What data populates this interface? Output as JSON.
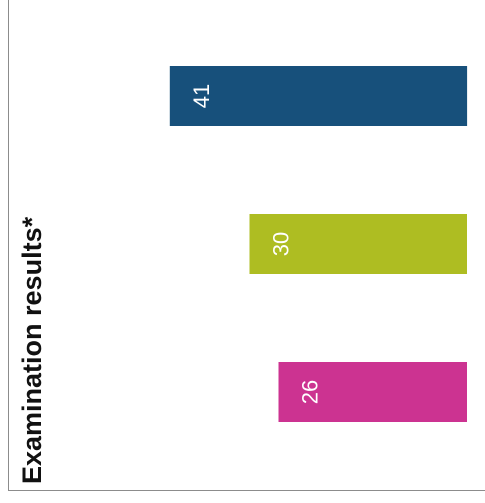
{
  "chart_data": {
    "type": "bar",
    "orientation": "horizontal",
    "ylabel": "Examination results*",
    "xlabel": "",
    "categories": [
      "",
      "",
      ""
    ],
    "values": [
      41,
      30,
      26
    ],
    "data_labels": [
      "41",
      "30",
      "26"
    ],
    "colors": [
      "#17507b",
      "#aebd22",
      "#cc3391"
    ],
    "grid": false,
    "legend": "none"
  }
}
